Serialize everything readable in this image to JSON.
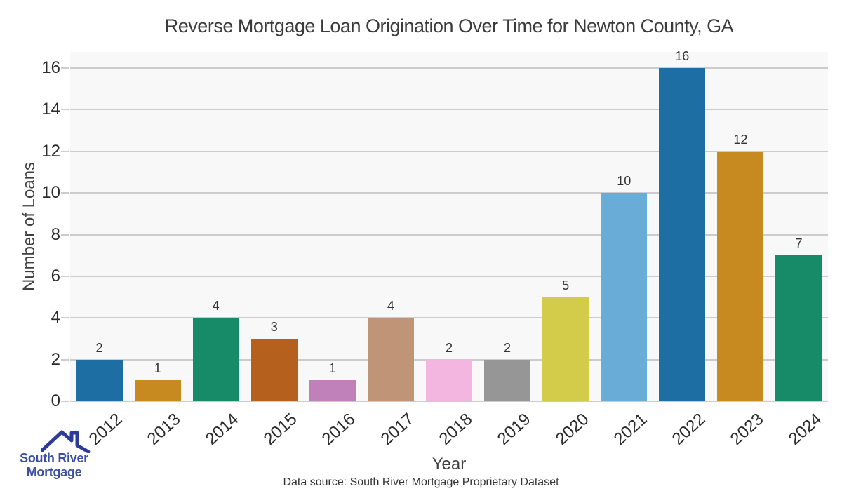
{
  "title": "Reverse Mortgage Loan Origination Over Time for Newton County, GA",
  "chart_data": {
    "type": "bar",
    "categories": [
      "2012",
      "2013",
      "2014",
      "2015",
      "2016",
      "2017",
      "2018",
      "2019",
      "2020",
      "2021",
      "2022",
      "2023",
      "2024"
    ],
    "values": [
      2,
      1,
      4,
      3,
      1,
      4,
      2,
      2,
      5,
      10,
      16,
      12,
      7
    ],
    "bar_colors": [
      "#1d6fa3",
      "#c78a20",
      "#178a68",
      "#b5611d",
      "#c081ba",
      "#c09577",
      "#f2b6e0",
      "#969696",
      "#d3cb4a",
      "#69acd8",
      "#1d6fa3",
      "#c78a20",
      "#178a68"
    ],
    "title": "Reverse Mortgage Loan Origination Over Time for Newton County, GA",
    "xlabel": "Year",
    "ylabel": "Number of Loans",
    "yticks": [
      0,
      2,
      4,
      6,
      8,
      10,
      12,
      14,
      16
    ],
    "ylim": [
      0,
      16.8
    ],
    "grid": "horizontal-even-ticks",
    "legend": "none",
    "value_labels": true
  },
  "footer": {
    "data_source": "Data source: South River Mortgage Proprietary Dataset"
  },
  "logo": {
    "line1": "South River",
    "line2": "Mortgage",
    "text_color": "#3c4fa2",
    "roof_color": "#2d3b98"
  },
  "style": {
    "plot_bg": "#f8f8f8",
    "grid_color": "#cccccc",
    "tick_text_color": "#2b2b2b",
    "title_color": "#3b3b3b",
    "value_label_color": "#333333"
  }
}
